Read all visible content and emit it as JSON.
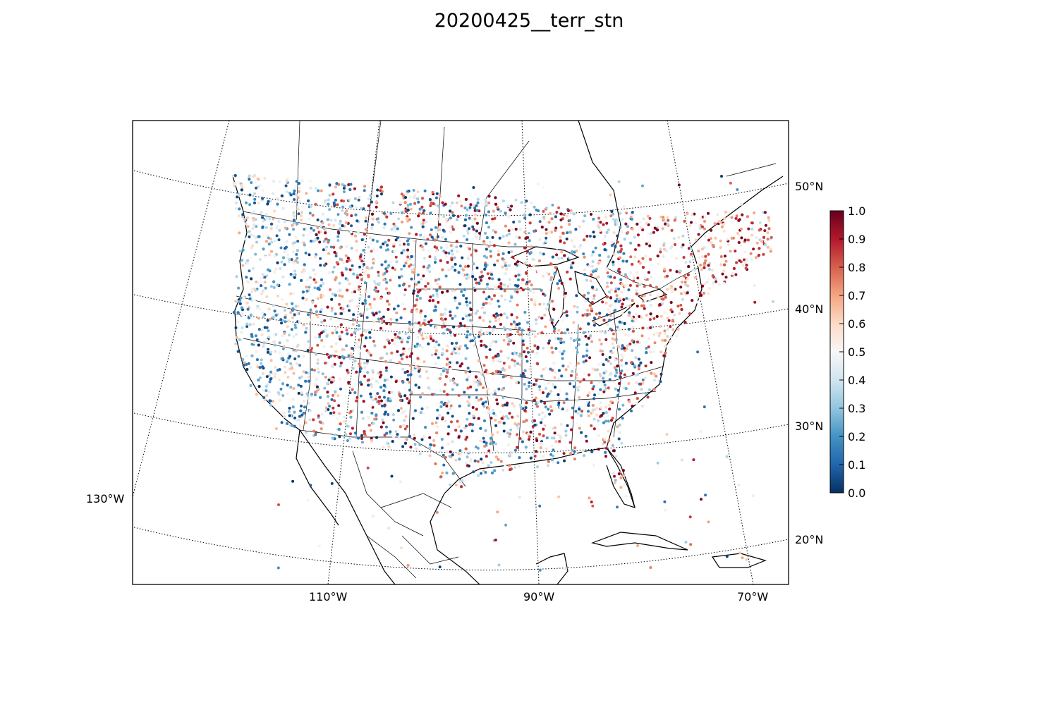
{
  "figure": {
    "title": "20200425__terr_stn"
  },
  "map": {
    "projection": "lambert-conformal",
    "latitude_labels": [
      "50°N",
      "40°N",
      "30°N",
      "20°N"
    ],
    "longitude_labels": [
      "130°W",
      "110°W",
      "90°W",
      "70°W"
    ],
    "gridlines": "dotted"
  },
  "colorbar": {
    "colormap": "RdBu_r",
    "ticks": [
      "0.0",
      "0.1",
      "0.2",
      "0.3",
      "0.4",
      "0.5",
      "0.6",
      "0.7",
      "0.8",
      "0.9",
      "1.0"
    ],
    "range": [
      0.0,
      1.0
    ],
    "colors": [
      "#053061",
      "#2166ac",
      "#4393c3",
      "#92c5de",
      "#d1e5f0",
      "#f7f7f7",
      "#fddbc7",
      "#f4a582",
      "#d6604d",
      "#b2182b",
      "#67001f"
    ]
  }
}
